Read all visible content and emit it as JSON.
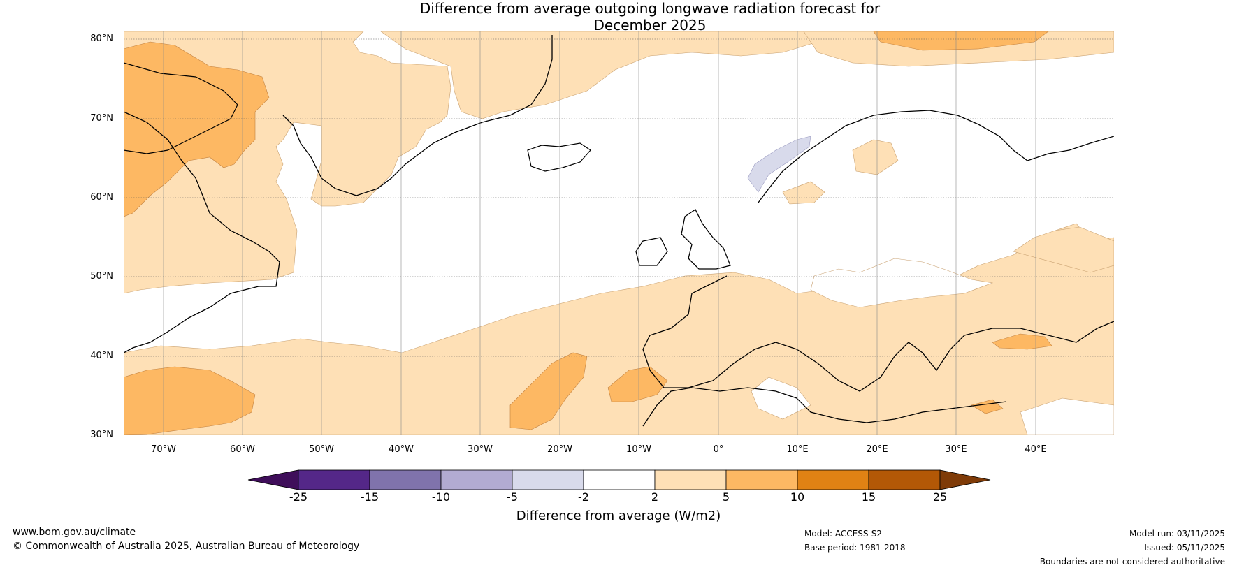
{
  "title": {
    "line1": "Difference from average outgoing longwave radiation forecast for",
    "line2": "December 2025"
  },
  "map": {
    "lat_labels": [
      "80°N",
      "70°N",
      "60°N",
      "50°N",
      "40°N",
      "30°N"
    ],
    "lon_labels": [
      "70°W",
      "60°W",
      "50°W",
      "40°W",
      "30°W",
      "20°W",
      "10°W",
      "0°",
      "10°E",
      "20°E",
      "30°E",
      "40°E"
    ],
    "extent": {
      "lon_min": -75,
      "lon_max": 50,
      "lat_min": 30,
      "lat_max": 81
    }
  },
  "colorbar": {
    "title": "Difference from average (W/m2)",
    "tick_labels": [
      "-25",
      "-15",
      "-10",
      "-5",
      "-2",
      "2",
      "5",
      "10",
      "15",
      "25"
    ],
    "colors": [
      "#3f0e5a",
      "#542788",
      "#8073ac",
      "#b2abd2",
      "#d8daeb",
      "#ffffff",
      "#fee0b6",
      "#fdb863",
      "#e08214",
      "#b35806",
      "#7f3b08"
    ]
  },
  "footer": {
    "website": "www.bom.gov.au/climate",
    "copyright": "© Commonwealth of Australia 2025, Australian Bureau of Meteorology",
    "model": "Model: ACCESS-S2",
    "base_period": "Base period: 1981-2018",
    "model_run": "Model run: 03/11/2025",
    "issued": "Issued: 05/11/2025",
    "disclaimer": "Boundaries are not considered authoritative"
  }
}
